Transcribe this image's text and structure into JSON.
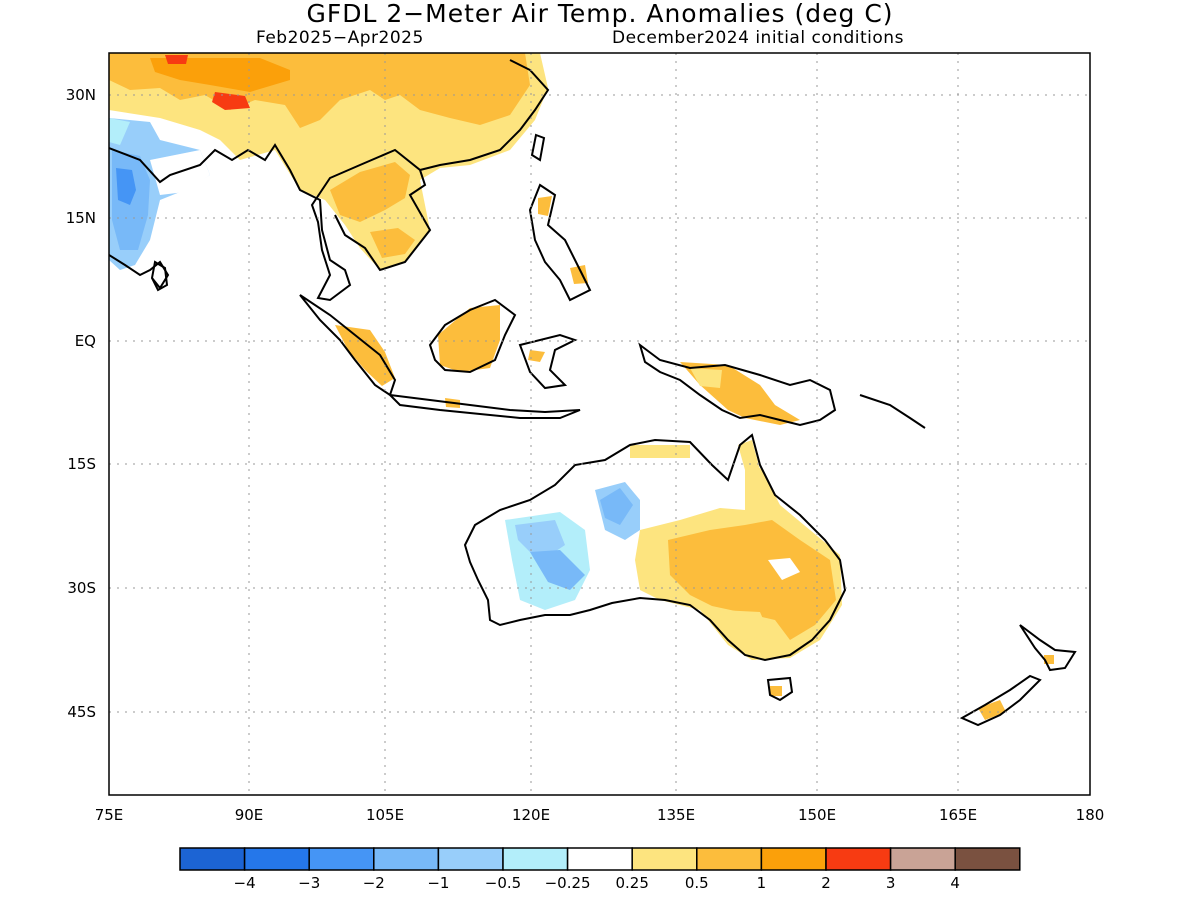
{
  "title": "GFDL 2−Meter Air Temp. Anomalies (deg C)",
  "subtitle_left": "Feb2025−Apr2025",
  "subtitle_right": "December2024 initial conditions",
  "lat_labels": [
    "30N",
    "15N",
    "EQ",
    "15S",
    "30S",
    "45S"
  ],
  "lon_labels": [
    "75E",
    "90E",
    "105E",
    "120E",
    "135E",
    "150E",
    "165E",
    "180"
  ],
  "colorbar": {
    "colors": [
      "#1c64d4",
      "#2577ea",
      "#4595f5",
      "#78b9f8",
      "#98cefa",
      "#b3eefa",
      "#ffffff",
      "#fde47f",
      "#fcbd3c",
      "#fba00a",
      "#f73b12",
      "#c9a396",
      "#7a5140"
    ],
    "labels": [
      "−4",
      "−3",
      "−2",
      "−1",
      "−0.5",
      "−0.25",
      "0.25",
      "0.5",
      "1",
      "2",
      "3",
      "4"
    ]
  },
  "map_colors": {
    "land_outline": "#000000",
    "grid": "#999999"
  }
}
